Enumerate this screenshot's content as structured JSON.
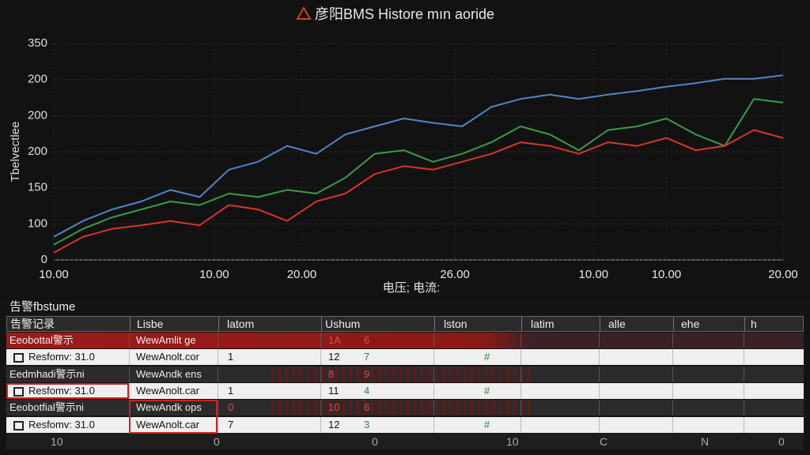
{
  "chart_data": {
    "type": "line",
    "title": "彦阳BMS Histore mın aoride",
    "y_label": "Tbelvectlee",
    "x_label": "电压;  电流:",
    "x": [
      0,
      4,
      8,
      12,
      16,
      20,
      24,
      28,
      32,
      36,
      40,
      44,
      48,
      52,
      56,
      60,
      64,
      68,
      72,
      76,
      80,
      84,
      88,
      92,
      96,
      100
    ],
    "series": [
      {
        "color": "#4f86c6",
        "values": [
          32,
          54,
          70,
          81,
          97,
          87,
          125,
          136,
          158,
          147,
          174,
          185,
          196,
          190,
          185,
          212,
          223,
          229,
          223,
          229,
          234,
          240,
          245,
          251,
          251,
          256
        ]
      },
      {
        "color": "#3a9a4a",
        "values": [
          21,
          43,
          59,
          70,
          81,
          76,
          92,
          87,
          97,
          92,
          114,
          147,
          152,
          136,
          147,
          163,
          185,
          174,
          152,
          180,
          185,
          196,
          174,
          158,
          223,
          218
        ]
      },
      {
        "color": "#d8352a",
        "values": [
          10,
          32,
          43,
          48,
          54,
          48,
          76,
          70,
          54,
          81,
          92,
          119,
          130,
          125,
          136,
          147,
          163,
          158,
          147,
          163,
          158,
          169,
          152,
          158,
          180,
          169
        ]
      }
    ],
    "xlim": [
      0,
      100
    ],
    "xticks": [
      {
        "value": 0,
        "label": "10.00"
      },
      {
        "value": 22,
        "label": "10.00"
      },
      {
        "value": 34,
        "label": "20.00"
      },
      {
        "value": 55,
        "label": "26.00"
      },
      {
        "value": 74,
        "label": "10.00"
      },
      {
        "value": 84,
        "label": "10.00"
      },
      {
        "value": 100,
        "label": "20.00"
      }
    ],
    "ylim": [
      0,
      300
    ],
    "yticks": [
      0,
      {
        "value": 50,
        "label": "100"
      },
      {
        "value": 100,
        "label": "150"
      },
      {
        "value": 150,
        "label": "200"
      },
      200,
      {
        "value": 250,
        "label": "200"
      },
      {
        "value": 300,
        "label": "350"
      }
    ],
    "grid": true
  },
  "alarms": {
    "title": "告警fbstume",
    "header": [
      "告警记录",
      "Lisbe",
      "latom",
      "Ushum",
      "lston",
      "latim",
      "alle",
      "ehe",
      "h"
    ],
    "rows": [
      [
        "Eeobottal警示",
        "WewAmlit ge",
        "1A",
        "6"
      ],
      [
        "Resfomv: 31.0",
        "WewAnolt.cor",
        "1",
        "12",
        "7",
        "#"
      ],
      [
        "Eedmhadi警示ni",
        "WewAndk ens",
        "8",
        "9"
      ],
      [
        "Resfomv: 31.0",
        "WewAnolt.car",
        "1",
        "11",
        "4",
        "#"
      ],
      [
        "Eeobotfial警示ni",
        "WewAndk ops",
        "0",
        "10",
        "6"
      ],
      [
        "Resfomv: 31.0",
        "WewAnolt.car",
        "7",
        "12",
        "3",
        "#"
      ]
    ],
    "footer": [
      "10",
      "0",
      "0",
      "10",
      "C",
      "N",
      "0"
    ]
  }
}
